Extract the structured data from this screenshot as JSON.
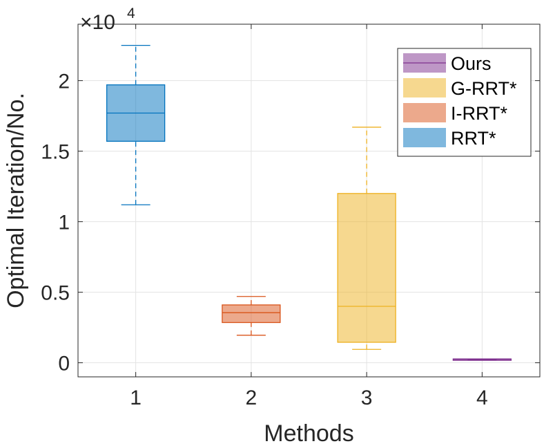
{
  "chart_data": {
    "type": "boxplot",
    "title": "",
    "xlabel": "Methods",
    "ylabel": "Optimal Iteration/No.",
    "y_exponent_base": "×10",
    "y_exponent_power": "4",
    "xlim": [
      0.5,
      4.5
    ],
    "ylim": [
      -0.1,
      2.4
    ],
    "grid": true,
    "categories": [
      "1",
      "2",
      "3",
      "4"
    ],
    "yticks": [
      0,
      0.5,
      1,
      1.5,
      2
    ],
    "ytick_labels": [
      "0",
      "0.5",
      "1",
      "1.5",
      "2"
    ],
    "boxes": [
      {
        "category": "1",
        "method": "RRT*",
        "color": "#0072BD",
        "whisker_low": 1.12,
        "q1": 1.57,
        "median": 1.77,
        "q3": 1.97,
        "whisker_high": 2.25
      },
      {
        "category": "2",
        "method": "I-RRT*",
        "color": "#D95319",
        "whisker_low": 0.195,
        "q1": 0.285,
        "median": 0.355,
        "q3": 0.41,
        "whisker_high": 0.47
      },
      {
        "category": "3",
        "method": "G-RRT*",
        "color": "#EDB120",
        "whisker_low": 0.095,
        "q1": 0.145,
        "median": 0.4,
        "q3": 1.2,
        "whisker_high": 1.67
      },
      {
        "category": "4",
        "method": "Ours",
        "color": "#7E2F8E",
        "whisker_low": 0.02,
        "q1": 0.02,
        "median": 0.025,
        "q3": 0.027,
        "whisker_high": 0.027
      }
    ],
    "legend": {
      "position": "top-right",
      "entries": [
        {
          "label": "Ours",
          "color": "#7E2F8E"
        },
        {
          "label": "G-RRT*",
          "color": "#EDB120"
        },
        {
          "label": "I-RRT*",
          "color": "#D95319"
        },
        {
          "label": "RRT*",
          "color": "#0072BD"
        }
      ]
    }
  }
}
